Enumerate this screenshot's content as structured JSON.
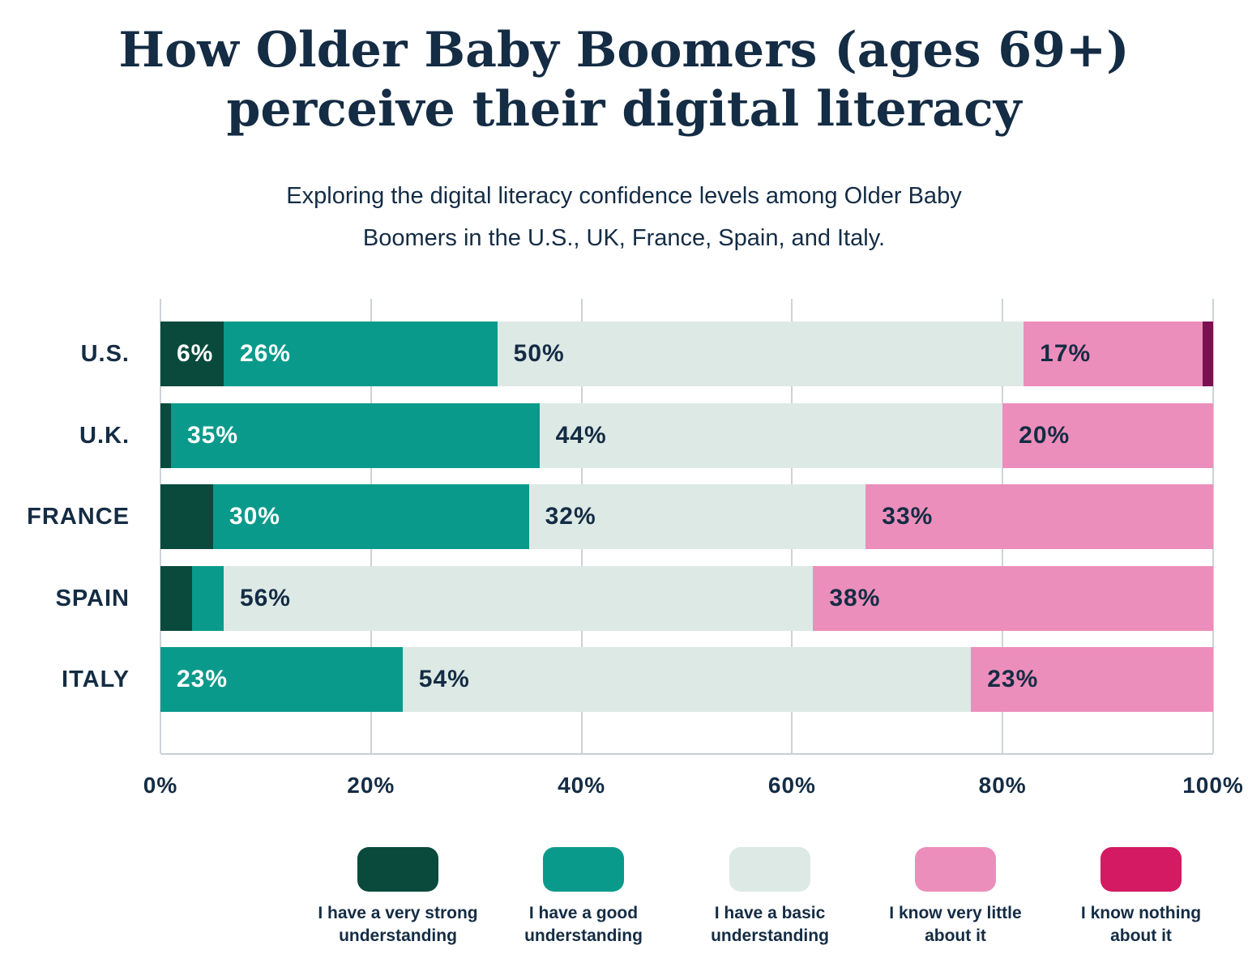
{
  "header": {
    "title_line1": "How Older Baby Boomers (ages 69+)",
    "title_line2": "perceive their digital literacy",
    "subtitle_line1": "Exploring the digital literacy confidence levels among Older Baby",
    "subtitle_line2": "Boomers in the U.S., UK, France, Spain, and Italy."
  },
  "colors": {
    "text_navy": "#142c44",
    "very_strong_green": "#094a3c",
    "good_teal": "#0a9a8b",
    "basic_light": "#dde9e5",
    "very_little_pink": "#ec8ebb",
    "nothing_bar_maroon": "#7a1150",
    "nothing_legend_crimson": "#d31a62",
    "gridline_gray": "#cdd3d5",
    "background": "#ffffff"
  },
  "chart_data": {
    "type": "bar",
    "orientation": "horizontal",
    "stacked": true,
    "grid": true,
    "xlim": [
      0,
      100
    ],
    "x_ticks": [
      "0%",
      "20%",
      "40%",
      "60%",
      "80%",
      "100%"
    ],
    "categories": [
      "U.S.",
      "U.K.",
      "FRANCE",
      "SPAIN",
      "ITALY"
    ],
    "series": [
      {
        "name": "I have a very strong understanding",
        "color": "#094a3c",
        "label_color": "#ffffff",
        "values": [
          6,
          1,
          5,
          3,
          0
        ],
        "labels": [
          "6%",
          null,
          null,
          null,
          null
        ]
      },
      {
        "name": "I have a good understanding",
        "color": "#0a9a8b",
        "label_color": "#ffffff",
        "values": [
          26,
          35,
          30,
          3,
          23
        ],
        "labels": [
          "26%",
          "35%",
          "30%",
          null,
          "23%"
        ]
      },
      {
        "name": "I have a basic understanding",
        "color": "#dde9e5",
        "label_color": "#142c44",
        "values": [
          50,
          44,
          32,
          56,
          54
        ],
        "labels": [
          "50%",
          "44%",
          "32%",
          "56%",
          "54%"
        ]
      },
      {
        "name": "I know very little about it",
        "color": "#ec8ebb",
        "label_color": "#142c44",
        "values": [
          17,
          20,
          33,
          38,
          23
        ],
        "labels": [
          "17%",
          "20%",
          "33%",
          "38%",
          "23%"
        ]
      },
      {
        "name": "I know nothing about it",
        "color": "#d31a62",
        "bar_color": "#7a1150",
        "label_color": "#ffffff",
        "values": [
          1,
          0,
          0,
          0,
          0
        ],
        "labels": [
          null,
          null,
          null,
          null,
          null
        ]
      }
    ],
    "legend_position": "bottom"
  },
  "legend": {
    "items": [
      {
        "line1": "I have a very strong",
        "line2": "understanding",
        "color": "#094a3c"
      },
      {
        "line1": "I have a good",
        "line2": "understanding",
        "color": "#0a9a8b"
      },
      {
        "line1": "I have a basic",
        "line2": "understanding",
        "color": "#dde9e5"
      },
      {
        "line1": "I know very little",
        "line2": "about it",
        "color": "#ec8ebb"
      },
      {
        "line1": "I know nothing",
        "line2": "about it",
        "color": "#d31a62"
      }
    ]
  }
}
